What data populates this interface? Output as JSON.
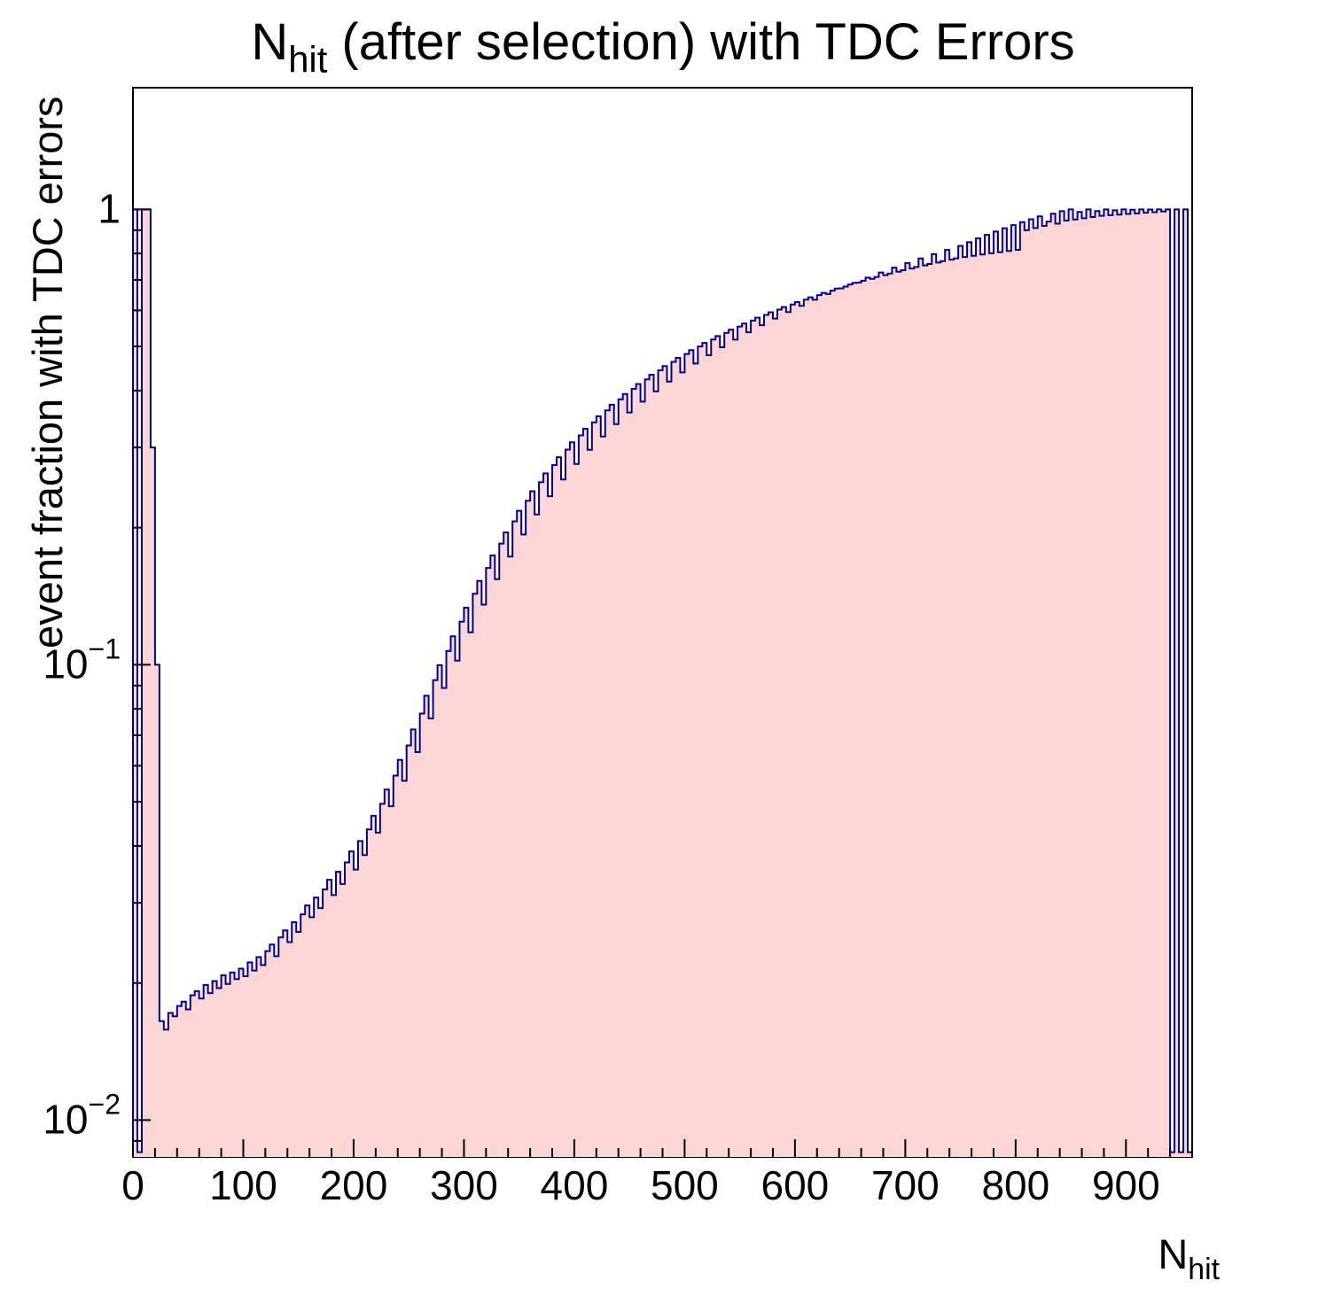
{
  "chart_data": {
    "type": "bar",
    "title_parts": {
      "pre": "N",
      "sub": "hit",
      "post": " (after selection) with TDC Errors"
    },
    "xlabel_parts": {
      "pre": "N",
      "sub": "hit"
    },
    "ylabel": "event fraction with TDC errors",
    "yscale": "log",
    "grid": false,
    "legend": "none",
    "xlim": [
      0,
      960
    ],
    "ylim": [
      0.0083,
      1.85
    ],
    "x_start": 0,
    "bin_width": 4,
    "x_major_ticks": [
      0,
      100,
      200,
      300,
      400,
      500,
      600,
      700,
      800,
      900
    ],
    "x_minor_step": 20,
    "y_major_ticks": [
      {
        "value": 1,
        "base": "1",
        "exp": ""
      },
      {
        "value": 0.1,
        "base": "10",
        "exp": "-1"
      },
      {
        "value": 0.01,
        "base": "10",
        "exp": "-2"
      }
    ],
    "colors": {
      "line": "#00008c",
      "fill": "#fcd6d6",
      "frame": "#000000",
      "background": "#ffffff",
      "text": "#000000"
    },
    "values": [
      1.0,
      0.0085,
      1.0,
      1.0,
      0.3,
      0.1,
      0.0165,
      0.0158,
      0.0172,
      0.0169,
      0.0178,
      0.0182,
      0.0175,
      0.0188,
      0.0192,
      0.0185,
      0.0198,
      0.019,
      0.0202,
      0.0195,
      0.0208,
      0.0199,
      0.0211,
      0.0204,
      0.0215,
      0.0207,
      0.0222,
      0.0213,
      0.0228,
      0.0219,
      0.0235,
      0.0243,
      0.0229,
      0.0252,
      0.0261,
      0.0246,
      0.0272,
      0.0259,
      0.0283,
      0.0296,
      0.0279,
      0.0308,
      0.0292,
      0.0321,
      0.0337,
      0.0312,
      0.0351,
      0.033,
      0.0368,
      0.0389,
      0.0355,
      0.041,
      0.0382,
      0.0435,
      0.0466,
      0.0428,
      0.0495,
      0.0532,
      0.0489,
      0.0571,
      0.0618,
      0.0556,
      0.0665,
      0.0721,
      0.0643,
      0.0781,
      0.0855,
      0.0762,
      0.0925,
      0.0998,
      0.0889,
      0.1072,
      0.1155,
      0.1021,
      0.1243,
      0.1334,
      0.1178,
      0.1432,
      0.1528,
      0.1355,
      0.1631,
      0.1738,
      0.1542,
      0.1845,
      0.1952,
      0.1728,
      0.2065,
      0.2178,
      0.1932,
      0.2292,
      0.2405,
      0.2138,
      0.2518,
      0.2631,
      0.2345,
      0.2744,
      0.2856,
      0.2552,
      0.2968,
      0.3079,
      0.2759,
      0.3189,
      0.3298,
      0.2965,
      0.3406,
      0.3513,
      0.3171,
      0.3619,
      0.3724,
      0.3376,
      0.3828,
      0.3931,
      0.358,
      0.4033,
      0.4134,
      0.3783,
      0.4234,
      0.4333,
      0.3985,
      0.4431,
      0.4528,
      0.4186,
      0.4624,
      0.4719,
      0.4386,
      0.4813,
      0.4906,
      0.4585,
      0.4998,
      0.5089,
      0.4783,
      0.5179,
      0.5268,
      0.498,
      0.5356,
      0.5443,
      0.5176,
      0.5529,
      0.5614,
      0.5371,
      0.5698,
      0.5781,
      0.5565,
      0.5863,
      0.5944,
      0.5758,
      0.6024,
      0.6103,
      0.595,
      0.6181,
      0.6258,
      0.6141,
      0.6334,
      0.6409,
      0.6331,
      0.6483,
      0.6556,
      0.652,
      0.6628,
      0.6699,
      0.6708,
      0.6769,
      0.6838,
      0.6895,
      0.6906,
      0.6973,
      0.7081,
      0.7039,
      0.7104,
      0.7265,
      0.7168,
      0.7231,
      0.7447,
      0.7293,
      0.7354,
      0.7626,
      0.7414,
      0.7473,
      0.7802,
      0.7531,
      0.7588,
      0.7975,
      0.7644,
      0.7699,
      0.8144,
      0.7753,
      0.7806,
      0.831,
      0.7858,
      0.8473,
      0.7909,
      0.8632,
      0.7959,
      0.8788,
      0.8008,
      0.894,
      0.8056,
      0.9089,
      0.8103,
      0.9234,
      0.8149,
      0.9376,
      0.9,
      0.9514,
      0.91,
      0.9649,
      0.92,
      0.94,
      0.978,
      0.93,
      0.9908,
      0.945,
      1.0,
      0.95,
      0.9868,
      0.956,
      1.0,
      0.962,
      0.9913,
      0.968,
      1.0,
      0.971,
      0.9955,
      0.974,
      1.0,
      0.977,
      0.998,
      0.98,
      1.0,
      0.983,
      0.999,
      0.986,
      1.0,
      0.989,
      1.0,
      0.0085,
      1.0,
      0.0085,
      1.0,
      0.0085
    ]
  }
}
